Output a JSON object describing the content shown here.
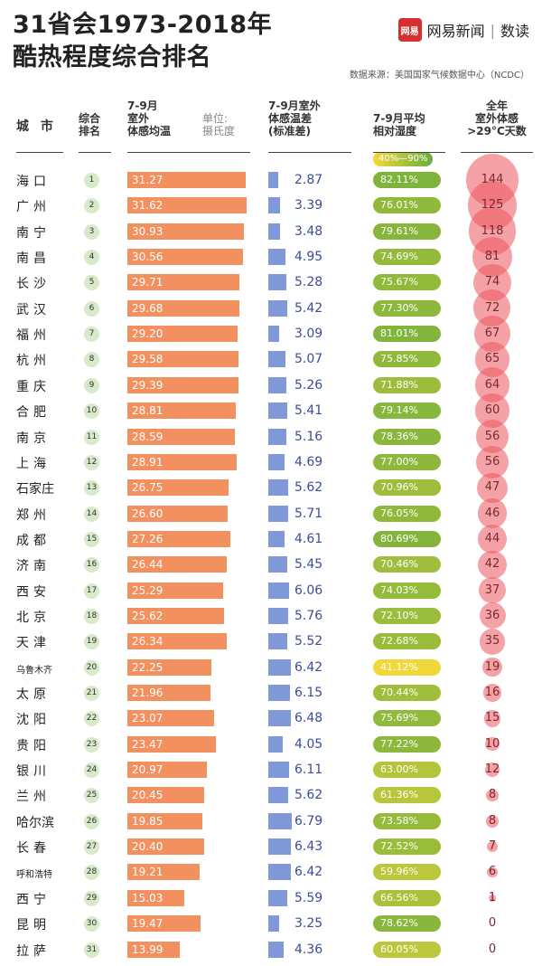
{
  "title": {
    "line1": "31省会1973-2018年",
    "line2": "酷热程度综合排名"
  },
  "logo": {
    "badge": "网易",
    "brand": "网易新闻",
    "sep": "|",
    "sub": "数读"
  },
  "source": "数据来源：美国国家气候数据中心（NCDC）",
  "headers": {
    "city": "城 市",
    "rank": "综合\n排名",
    "temp": "7-9月\n室外\n体感均温",
    "unit": "单位:\n摄氏度",
    "std": "7-9月室外\n体感温差\n(标准差)",
    "humidity": "7-9月平均\n相对湿度",
    "humidity_range": "40%—90%",
    "days": "全年\n室外体感\n>29°C天数"
  },
  "colors": {
    "temp_bar": "#f3905f",
    "std_bar": "#7e98d8",
    "bubble": "#ec555f",
    "hum_low": "#f3d93a",
    "hum_high": "#69ad3c"
  },
  "chart_data": {
    "type": "table",
    "columns": [
      "城市",
      "综合排名",
      "7-9月室外体感均温",
      "7-9月室外体感温差(标准差)",
      "7-9月平均相对湿度",
      "全年室外体感>29°C天数"
    ],
    "rows": [
      {
        "city": "海口",
        "rank": "1",
        "temp": "31.27",
        "std": "2.87",
        "humidity": "82.11%",
        "days": "144"
      },
      {
        "city": "广州",
        "rank": "2",
        "temp": "31.62",
        "std": "3.39",
        "humidity": "76.01%",
        "days": "125"
      },
      {
        "city": "南宁",
        "rank": "3",
        "temp": "30.93",
        "std": "3.48",
        "humidity": "79.61%",
        "days": "118"
      },
      {
        "city": "南昌",
        "rank": "4",
        "temp": "30.56",
        "std": "4.95",
        "humidity": "74.69%",
        "days": "81"
      },
      {
        "city": "长沙",
        "rank": "5",
        "temp": "29.71",
        "std": "5.28",
        "humidity": "75.67%",
        "days": "74"
      },
      {
        "city": "武汉",
        "rank": "6",
        "temp": "29.68",
        "std": "5.42",
        "humidity": "77.30%",
        "days": "72"
      },
      {
        "city": "福州",
        "rank": "7",
        "temp": "29.20",
        "std": "3.09",
        "humidity": "81.01%",
        "days": "67"
      },
      {
        "city": "杭州",
        "rank": "8",
        "temp": "29.58",
        "std": "5.07",
        "humidity": "75.85%",
        "days": "65"
      },
      {
        "city": "重庆",
        "rank": "9",
        "temp": "29.39",
        "std": "5.26",
        "humidity": "71.88%",
        "days": "64"
      },
      {
        "city": "合肥",
        "rank": "10",
        "temp": "28.81",
        "std": "5.41",
        "humidity": "79.14%",
        "days": "60"
      },
      {
        "city": "南京",
        "rank": "11",
        "temp": "28.59",
        "std": "5.16",
        "humidity": "78.36%",
        "days": "56"
      },
      {
        "city": "上海",
        "rank": "12",
        "temp": "28.91",
        "std": "4.69",
        "humidity": "77.00%",
        "days": "56"
      },
      {
        "city": "石家庄",
        "rank": "13",
        "temp": "26.75",
        "std": "5.62",
        "humidity": "70.96%",
        "days": "47"
      },
      {
        "city": "郑州",
        "rank": "14",
        "temp": "26.60",
        "std": "5.71",
        "humidity": "76.05%",
        "days": "46"
      },
      {
        "city": "成都",
        "rank": "15",
        "temp": "27.26",
        "std": "4.61",
        "humidity": "80.69%",
        "days": "44"
      },
      {
        "city": "济南",
        "rank": "16",
        "temp": "26.44",
        "std": "5.45",
        "humidity": "70.46%",
        "days": "42"
      },
      {
        "city": "西安",
        "rank": "17",
        "temp": "25.29",
        "std": "6.06",
        "humidity": "74.03%",
        "days": "37"
      },
      {
        "city": "北京",
        "rank": "18",
        "temp": "25.62",
        "std": "5.76",
        "humidity": "72.10%",
        "days": "36"
      },
      {
        "city": "天津",
        "rank": "19",
        "temp": "26.34",
        "std": "5.52",
        "humidity": "72.68%",
        "days": "35"
      },
      {
        "city": "乌鲁木齐",
        "rank": "20",
        "temp": "22.25",
        "std": "6.42",
        "humidity": "41.12%",
        "days": "19"
      },
      {
        "city": "太原",
        "rank": "21",
        "temp": "21.96",
        "std": "6.15",
        "humidity": "70.44%",
        "days": "16"
      },
      {
        "city": "沈阳",
        "rank": "22",
        "temp": "23.07",
        "std": "6.48",
        "humidity": "75.69%",
        "days": "15"
      },
      {
        "city": "贵阳",
        "rank": "23",
        "temp": "23.47",
        "std": "4.05",
        "humidity": "77.22%",
        "days": "10"
      },
      {
        "city": "银川",
        "rank": "24",
        "temp": "20.97",
        "std": "6.11",
        "humidity": "63.00%",
        "days": "12"
      },
      {
        "city": "兰州",
        "rank": "25",
        "temp": "20.45",
        "std": "5.62",
        "humidity": "61.36%",
        "days": "8"
      },
      {
        "city": "哈尔滨",
        "rank": "26",
        "temp": "19.85",
        "std": "6.79",
        "humidity": "73.58%",
        "days": "8"
      },
      {
        "city": "长春",
        "rank": "27",
        "temp": "20.40",
        "std": "6.43",
        "humidity": "72.52%",
        "days": "7"
      },
      {
        "city": "呼和浩特",
        "rank": "28",
        "temp": "19.21",
        "std": "6.42",
        "humidity": "59.96%",
        "days": "6"
      },
      {
        "city": "西宁",
        "rank": "29",
        "temp": "15.03",
        "std": "5.59",
        "humidity": "66.56%",
        "days": "1"
      },
      {
        "city": "昆明",
        "rank": "30",
        "temp": "19.47",
        "std": "3.25",
        "humidity": "78.62%",
        "days": "0"
      },
      {
        "city": "拉萨",
        "rank": "31",
        "temp": "13.99",
        "std": "4.36",
        "humidity": "60.05%",
        "days": "0"
      }
    ]
  }
}
